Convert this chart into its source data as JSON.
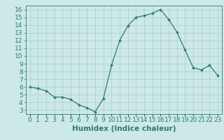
{
  "x": [
    0,
    1,
    2,
    3,
    4,
    5,
    6,
    7,
    8,
    9,
    10,
    11,
    12,
    13,
    14,
    15,
    16,
    17,
    18,
    19,
    20,
    21,
    22,
    23
  ],
  "y": [
    6.0,
    5.8,
    5.5,
    4.7,
    4.7,
    4.4,
    3.7,
    3.3,
    2.8,
    4.5,
    8.8,
    12.0,
    13.9,
    15.0,
    15.2,
    15.5,
    16.0,
    14.7,
    13.1,
    10.8,
    8.5,
    8.2,
    8.8,
    7.5
  ],
  "xlabel": "Humidex (Indice chaleur)",
  "xlim": [
    -0.5,
    23.5
  ],
  "ylim": [
    2.5,
    16.5
  ],
  "yticks": [
    3,
    4,
    5,
    6,
    7,
    8,
    9,
    10,
    11,
    12,
    13,
    14,
    15,
    16
  ],
  "xtick_labels": [
    "0",
    "1",
    "2",
    "3",
    "4",
    "5",
    "6",
    "7",
    "8",
    "9",
    "10",
    "11",
    "12",
    "13",
    "14",
    "15",
    "16",
    "17",
    "18",
    "19",
    "20",
    "21",
    "22",
    "23"
  ],
  "line_color": "#2e7d6e",
  "marker": "D",
  "marker_size": 2.0,
  "bg_color": "#cce8e8",
  "grid_color": "#aacece",
  "tick_color": "#2e7d6e",
  "label_color": "#2e7d6e",
  "tick_fontsize": 6.5,
  "xlabel_fontsize": 7.5
}
